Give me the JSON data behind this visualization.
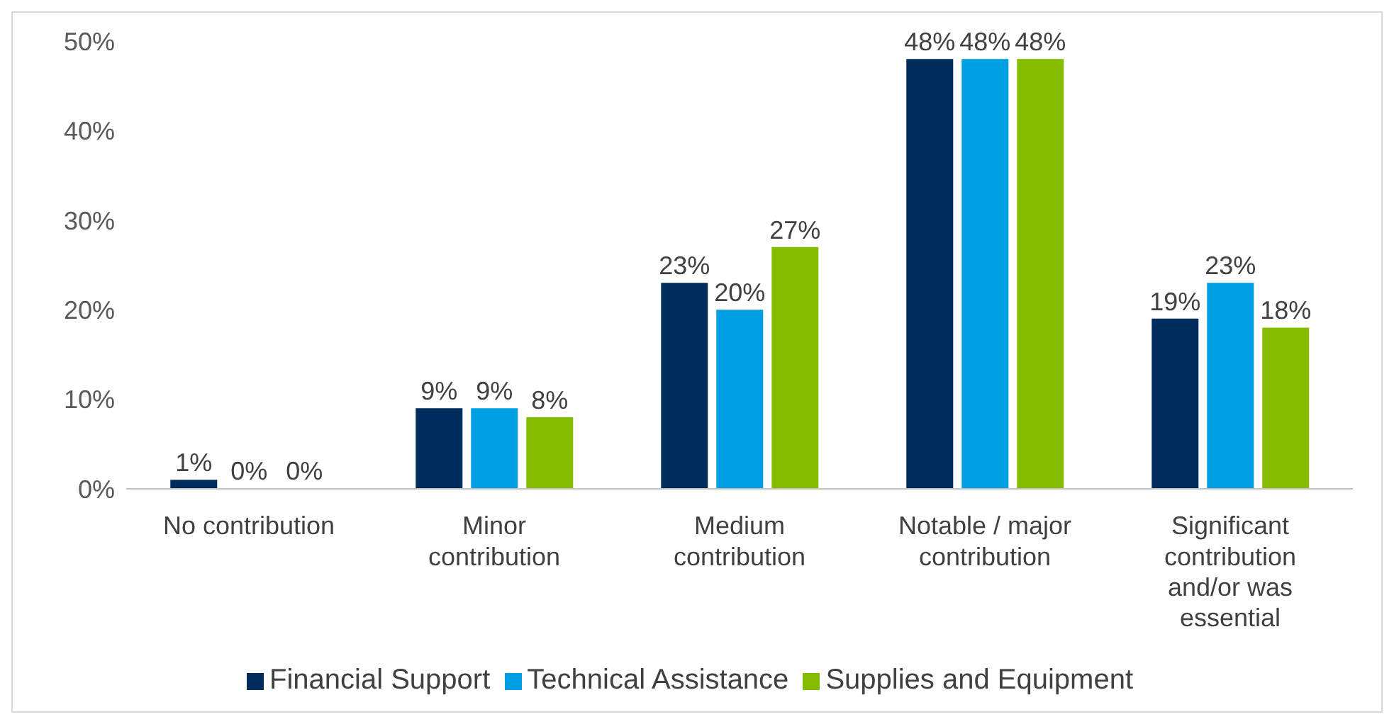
{
  "chart_data": {
    "type": "bar",
    "categories": [
      "No contribution",
      "Minor contribution",
      "Medium contribution",
      "Notable / major contribution",
      "Significant contribution and/or was essential"
    ],
    "series": [
      {
        "name": "Financial Support",
        "color": "#002d5c",
        "values": [
          1,
          9,
          23,
          48,
          19
        ],
        "value_labels": [
          "1%",
          "9%",
          "23%",
          "48%",
          "19%"
        ]
      },
      {
        "name": "Technical Assistance",
        "color": "#009fe3",
        "values": [
          0,
          9,
          20,
          48,
          23
        ],
        "value_labels": [
          "0%",
          "9%",
          "20%",
          "48%",
          "23%"
        ]
      },
      {
        "name": "Supplies and Equipment",
        "color": "#84bd00",
        "values": [
          0,
          8,
          27,
          48,
          18
        ],
        "value_labels": [
          "0%",
          "8%",
          "27%",
          "48%",
          "18%"
        ]
      }
    ],
    "ylim": [
      0,
      50
    ],
    "yticks": [
      {
        "value": 0,
        "label": "0%"
      },
      {
        "value": 10,
        "label": "10%"
      },
      {
        "value": 20,
        "label": "20%"
      },
      {
        "value": 30,
        "label": "30%"
      },
      {
        "value": 40,
        "label": "40%"
      },
      {
        "value": 50,
        "label": "50%"
      }
    ],
    "grid": false,
    "legend": "bottom",
    "marker": "square"
  }
}
